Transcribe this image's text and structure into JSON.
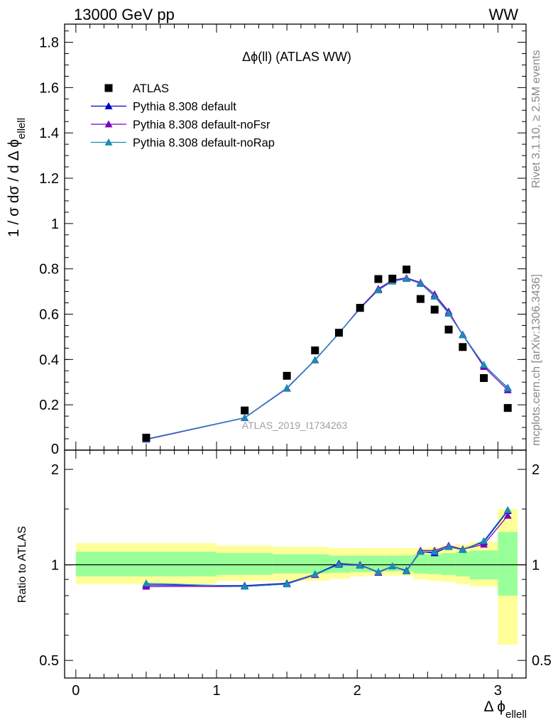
{
  "header": {
    "left": "13000 GeV pp",
    "right": "WW",
    "side_rivet": "Rivet 3.1.10, ≥ 2.5M events",
    "side_mcplots": "mcplots.cern.ch [arXiv:1306.3436]"
  },
  "chart_data": [
    {
      "type": "scatter",
      "panel": "main",
      "title": "Δϕ(ll) (ATLAS WW)",
      "ylabel": "1 / σ dσ / d Δ ϕ_ellell",
      "xlabel": "",
      "xlim": [
        -0.08,
        3.2
      ],
      "ylim": [
        0,
        1.88
      ],
      "yticks": [
        0.2,
        0.4,
        0.6,
        0.8,
        1,
        1.2,
        1.4,
        1.6,
        1.8
      ],
      "ytick_labels": [
        "0.2",
        "0.4",
        "0.6",
        "0.8",
        "1",
        "1.2",
        "1.4",
        "1.6",
        "1.8"
      ],
      "watermark": "ATLAS_2019_I1734263",
      "legend_position": "top-left",
      "data_series": {
        "name": "ATLAS",
        "marker": "square",
        "color": "#000000",
        "x": [
          0.5,
          1.2,
          1.5,
          1.7,
          1.87,
          2.02,
          2.15,
          2.25,
          2.35,
          2.45,
          2.55,
          2.65,
          2.75,
          2.9,
          3.07
        ],
        "y": [
          0.055,
          0.175,
          0.328,
          0.44,
          0.518,
          0.628,
          0.755,
          0.757,
          0.797,
          0.667,
          0.62,
          0.532,
          0.455,
          0.318,
          0.186
        ]
      },
      "series": [
        {
          "name": "Pythia 8.308 default",
          "color": "#0000cc",
          "x": [
            0.5,
            1.2,
            1.5,
            1.7,
            1.87,
            2.02,
            2.15,
            2.25,
            2.35,
            2.45,
            2.55,
            2.65,
            2.75,
            2.9,
            3.07
          ],
          "y": [
            0.048,
            0.143,
            0.274,
            0.398,
            0.516,
            0.625,
            0.708,
            0.745,
            0.758,
            0.735,
            0.68,
            0.605,
            0.51,
            0.375,
            0.275
          ]
        },
        {
          "name": "Pythia 8.308 default-noFsr",
          "color": "#7b00c0",
          "x": [
            0.5,
            1.2,
            1.5,
            1.7,
            1.87,
            2.02,
            2.15,
            2.25,
            2.35,
            2.45,
            2.55,
            2.65,
            2.75,
            2.9,
            3.07
          ],
          "y": [
            0.047,
            0.142,
            0.272,
            0.397,
            0.515,
            0.628,
            0.712,
            0.75,
            0.76,
            0.74,
            0.688,
            0.612,
            0.508,
            0.368,
            0.265
          ]
        },
        {
          "name": "Pythia 8.308 default-noRap",
          "color": "#1a8cb4",
          "x": [
            0.5,
            1.2,
            1.5,
            1.7,
            1.87,
            2.02,
            2.15,
            2.25,
            2.35,
            2.45,
            2.55,
            2.65,
            2.75,
            2.9,
            3.07
          ],
          "y": [
            0.049,
            0.143,
            0.273,
            0.398,
            0.516,
            0.624,
            0.706,
            0.745,
            0.756,
            0.736,
            0.678,
            0.603,
            0.508,
            0.377,
            0.273
          ]
        }
      ]
    },
    {
      "type": "line",
      "panel": "ratio",
      "ylabel": "Ratio to ATLAS",
      "xlabel": "Δ ϕ_ellell",
      "scale_y": "log",
      "xlim": [
        -0.08,
        3.2
      ],
      "ylim": [
        0.44,
        2.3
      ],
      "yticks": [
        0.5,
        1,
        2
      ],
      "ytick_labels": [
        "0.5",
        "1",
        "2"
      ],
      "xticks": [
        0,
        1,
        2,
        3
      ],
      "xtick_labels": [
        "0",
        "1",
        "2",
        "3"
      ],
      "bands": {
        "edges": [
          0,
          1,
          1.4,
          1.8,
          1.95,
          2.1,
          2.2,
          2.3,
          2.4,
          2.5,
          2.6,
          2.7,
          2.8,
          3.0,
          3.14
        ],
        "outer_low": [
          0.87,
          0.89,
          0.89,
          0.905,
          0.92,
          0.925,
          0.925,
          0.925,
          0.9,
          0.89,
          0.885,
          0.87,
          0.855,
          0.56
        ],
        "outer_high": [
          1.17,
          1.15,
          1.14,
          1.13,
          1.13,
          1.13,
          1.13,
          1.13,
          1.13,
          1.14,
          1.15,
          1.16,
          1.18,
          1.5
        ],
        "inner_low": [
          0.92,
          0.93,
          0.94,
          0.945,
          0.95,
          0.955,
          0.955,
          0.955,
          0.94,
          0.935,
          0.93,
          0.92,
          0.9,
          0.8
        ],
        "inner_high": [
          1.1,
          1.09,
          1.08,
          1.07,
          1.07,
          1.07,
          1.07,
          1.07,
          1.08,
          1.08,
          1.09,
          1.1,
          1.11,
          1.27
        ],
        "outer_color": "#ffff99",
        "inner_color": "#99ff99"
      },
      "series": [
        {
          "name": "Pythia 8.308 default",
          "color": "#0000cc",
          "x": [
            0.5,
            1.2,
            1.5,
            1.7,
            1.87,
            2.02,
            2.15,
            2.25,
            2.35,
            2.45,
            2.55,
            2.65,
            2.75,
            2.9,
            3.07
          ],
          "y": [
            0.865,
            0.86,
            0.875,
            0.935,
            1.01,
            1.0,
            0.95,
            0.99,
            0.96,
            1.1,
            1.09,
            1.14,
            1.12,
            1.18,
            1.48
          ]
        },
        {
          "name": "Pythia 8.308 default-noFsr",
          "color": "#7b00c0",
          "x": [
            0.5,
            1.2,
            1.5,
            1.7,
            1.87,
            2.02,
            2.15,
            2.25,
            2.35,
            2.45,
            2.55,
            2.65,
            2.75,
            2.9,
            3.07
          ],
          "y": [
            0.855,
            0.855,
            0.87,
            0.93,
            1.005,
            1.0,
            0.945,
            0.99,
            0.955,
            1.11,
            1.11,
            1.15,
            1.12,
            1.16,
            1.43
          ]
        },
        {
          "name": "Pythia 8.308 default-noRap",
          "color": "#1a8cb4",
          "x": [
            0.5,
            1.2,
            1.5,
            1.7,
            1.87,
            2.02,
            2.15,
            2.25,
            2.35,
            2.45,
            2.55,
            2.65,
            2.75,
            2.9,
            3.07
          ],
          "y": [
            0.875,
            0.855,
            0.87,
            0.935,
            1.0,
            0.995,
            0.95,
            0.99,
            0.955,
            1.1,
            1.1,
            1.14,
            1.115,
            1.19,
            1.49
          ]
        }
      ]
    }
  ]
}
